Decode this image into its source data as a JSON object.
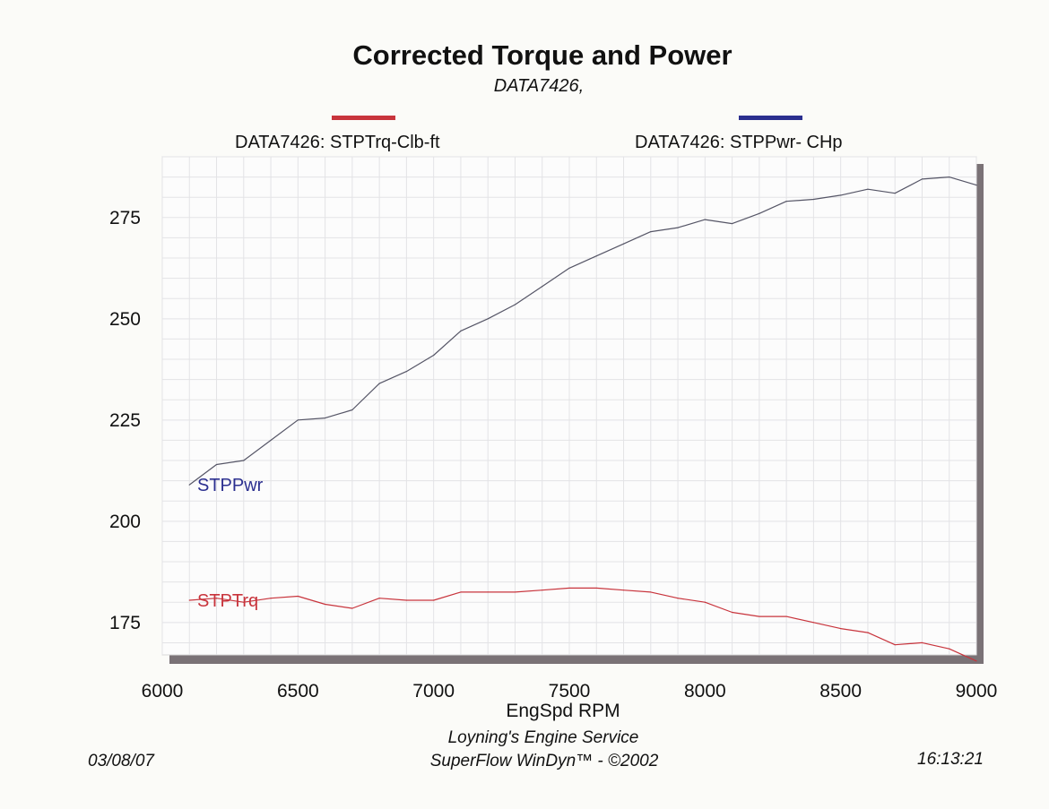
{
  "chart_data": {
    "type": "line",
    "title": "Corrected Torque and Power",
    "subtitle": "DATA7426,",
    "xlabel": "EngSpd  RPM",
    "ylabel": "",
    "xlim": [
      6000,
      9000
    ],
    "ylim": [
      167,
      290
    ],
    "x_ticks": [
      6000,
      6500,
      7000,
      7500,
      8000,
      8500,
      9000
    ],
    "y_ticks": [
      175,
      200,
      225,
      250,
      275
    ],
    "grid": true,
    "legend": [
      {
        "label": "DATA7426: STPTrq-Clb-ft",
        "color": "#c8343c"
      },
      {
        "label": "DATA7426: STPPwr- CHp",
        "color": "#2b2f8f"
      }
    ],
    "series": [
      {
        "name": "STPPwr",
        "label": "STPPwr",
        "color": "#555566",
        "label_color": "#2b2f8f",
        "x": [
          6100,
          6200,
          6300,
          6400,
          6500,
          6600,
          6700,
          6800,
          6900,
          7000,
          7100,
          7200,
          7300,
          7400,
          7500,
          7600,
          7700,
          7800,
          7900,
          8000,
          8100,
          8200,
          8300,
          8400,
          8500,
          8600,
          8700,
          8800,
          8900,
          9000
        ],
        "y": [
          209,
          214,
          215,
          220,
          225,
          225.5,
          227.5,
          234,
          237,
          241,
          247,
          250,
          253.5,
          258,
          262.5,
          265.5,
          268.5,
          271.5,
          272.5,
          274.5,
          273.5,
          276,
          279,
          279.5,
          280.5,
          282,
          281,
          284.5,
          285,
          283
        ]
      },
      {
        "name": "STPTrq",
        "label": "STPTrq",
        "color": "#c8343c",
        "label_color": "#c8343c",
        "x": [
          6100,
          6200,
          6300,
          6400,
          6500,
          6600,
          6700,
          6800,
          6900,
          7000,
          7100,
          7200,
          7300,
          7400,
          7500,
          7600,
          7700,
          7800,
          7900,
          8000,
          8100,
          8200,
          8300,
          8400,
          8500,
          8600,
          8700,
          8800,
          8900,
          9000
        ],
        "y": [
          180.5,
          181,
          180,
          181,
          181.5,
          179.5,
          178.5,
          181,
          180.5,
          180.5,
          182.5,
          182.5,
          182.5,
          183,
          183.5,
          183.5,
          183,
          182.5,
          181,
          180,
          177.5,
          176.5,
          176.5,
          175,
          173.5,
          172.5,
          169.5,
          170,
          168.5,
          165.5
        ]
      }
    ]
  },
  "footer": {
    "date": "03/08/07",
    "company": "Loyning's Engine Service",
    "software": "SuperFlow WinDyn™ - ©2002",
    "time": "16:13:21"
  }
}
